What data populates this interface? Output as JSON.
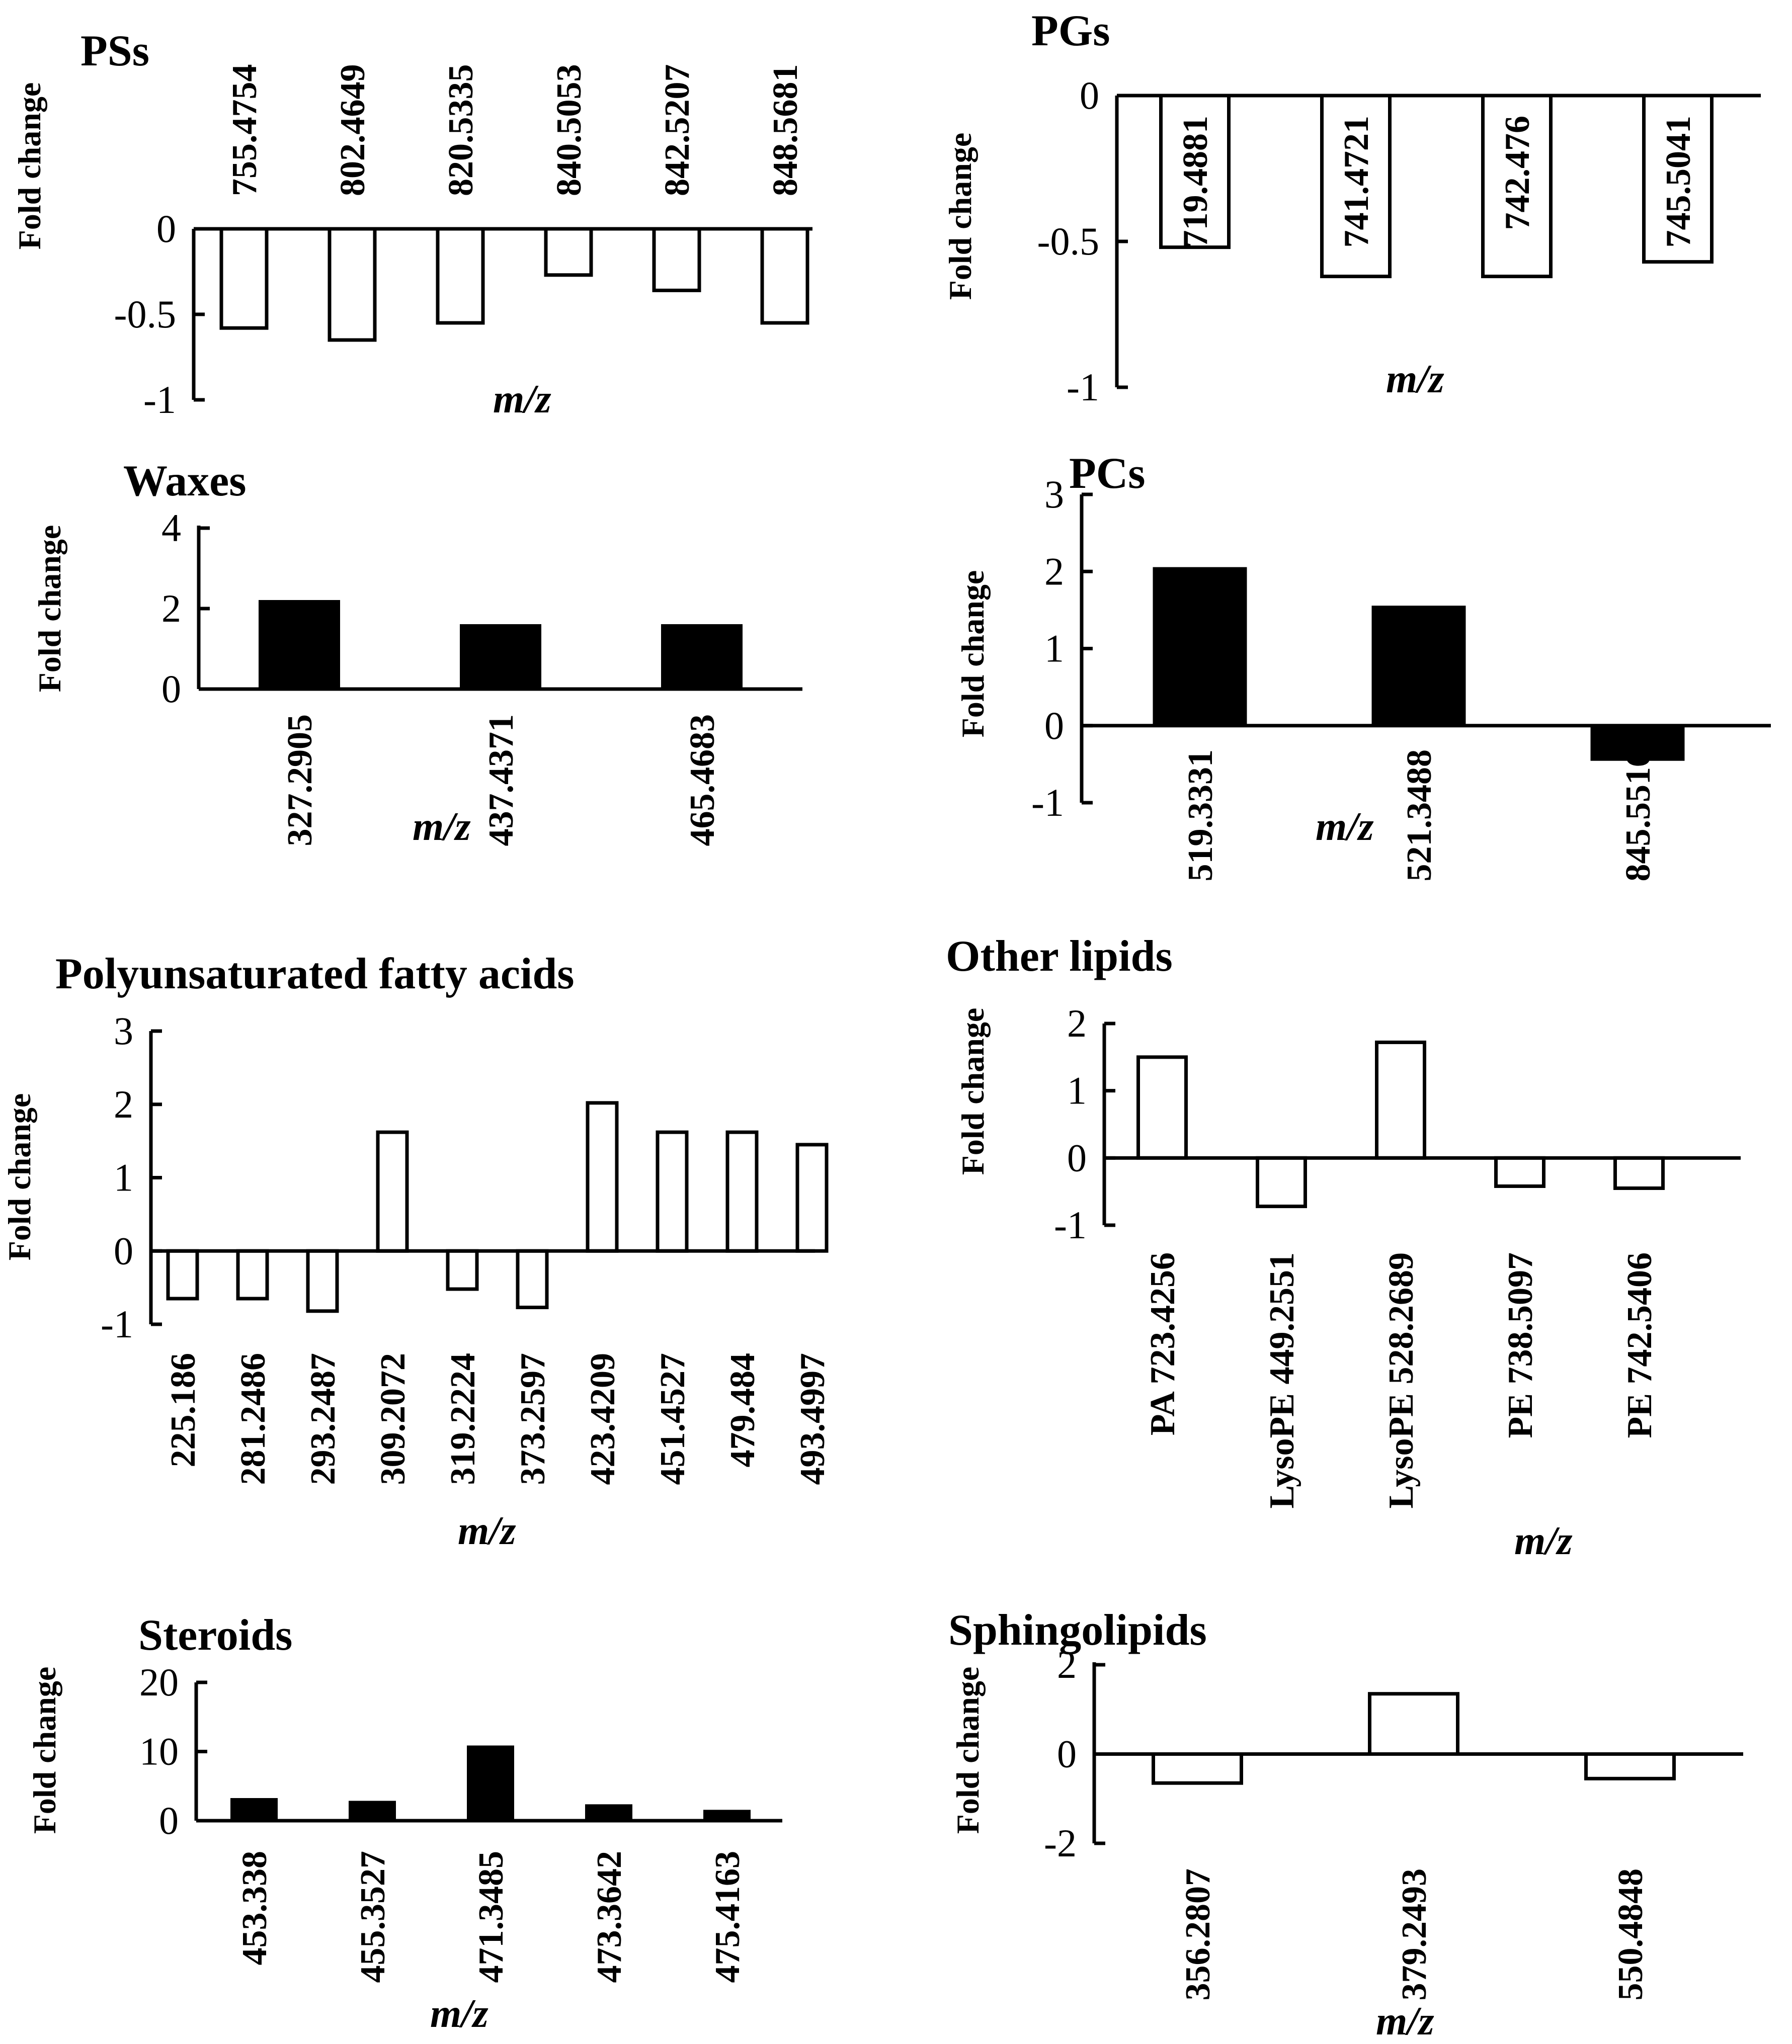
{
  "chart_data": [
    {
      "id": "pss",
      "type": "bar",
      "title": "PSs",
      "ylabel": "Fold change",
      "xlabel": "m/z",
      "ylim": [
        -1,
        0
      ],
      "yticks": [
        "0",
        "-0.5",
        "-1"
      ],
      "ytick_values": [
        0,
        -0.5,
        -1
      ],
      "fill": "open",
      "categories": [
        "755.4754",
        "802.4649",
        "820.5335",
        "840.5053",
        "842.5207",
        "848.5681"
      ],
      "values": [
        -0.58,
        -0.65,
        -0.55,
        -0.27,
        -0.36,
        -0.55
      ]
    },
    {
      "id": "pgs",
      "type": "bar",
      "title": "PGs",
      "ylabel": "Fold change",
      "xlabel": "m/z",
      "ylim": [
        -1,
        0
      ],
      "yticks": [
        "0",
        "-0.5",
        "-1"
      ],
      "ytick_values": [
        0,
        -0.5,
        -1
      ],
      "fill": "open",
      "categories": [
        "719.4881",
        "741.4721",
        "742.476",
        "745.5041"
      ],
      "values": [
        -0.52,
        -0.62,
        -0.62,
        -0.57
      ]
    },
    {
      "id": "waxes",
      "type": "bar",
      "title": "Waxes",
      "ylabel": "Fold change",
      "xlabel": "m/z",
      "ylim": [
        0,
        4
      ],
      "yticks": [
        "4",
        "2",
        "0"
      ],
      "ytick_values": [
        4,
        2,
        0
      ],
      "fill": "solid",
      "categories": [
        "327.2905",
        "437.4371",
        "465.4683"
      ],
      "values": [
        2.2,
        1.6,
        1.6
      ]
    },
    {
      "id": "pcs",
      "type": "bar",
      "title": "PCs",
      "ylabel": "Fold change",
      "xlabel": "m/z",
      "ylim": [
        -1,
        3
      ],
      "yticks": [
        "3",
        "2",
        "1",
        "0",
        "-1"
      ],
      "ytick_values": [
        3,
        2,
        1,
        0,
        -1
      ],
      "fill": "solid",
      "categories": [
        "519.3331",
        "521.3488",
        "845.5516"
      ],
      "values": [
        2.05,
        1.55,
        -0.45
      ]
    },
    {
      "id": "pufa",
      "type": "bar",
      "title": "Polyunsaturated fatty acids",
      "ylabel": "Fold change",
      "xlabel": "m/z",
      "ylim": [
        -1,
        3
      ],
      "yticks": [
        "3",
        "2",
        "1",
        "0",
        "-1"
      ],
      "ytick_values": [
        3,
        2,
        1,
        0,
        -1
      ],
      "fill": "open",
      "categories": [
        "225.186",
        "281.2486",
        "293.2487",
        "309.2072",
        "319.2224",
        "373.2597",
        "423.4209",
        "451.4527",
        "479.484",
        "493.4997"
      ],
      "values": [
        -0.65,
        -0.65,
        -0.82,
        1.62,
        -0.52,
        -0.77,
        2.02,
        1.62,
        1.62,
        1.45
      ]
    },
    {
      "id": "other",
      "type": "bar",
      "title": "Other lipids",
      "ylabel": "Fold change",
      "xlabel": "m/z",
      "ylim": [
        -1,
        2
      ],
      "yticks": [
        "2",
        "1",
        "0",
        "-1"
      ],
      "ytick_values": [
        2,
        1,
        0,
        -1
      ],
      "fill": "open",
      "categories": [
        "PA 723.4256",
        "LysoPE 449.2551",
        "LysoPE 528.2689",
        "PE 738.5097",
        "PE 742.5406"
      ],
      "values": [
        1.5,
        -0.72,
        1.72,
        -0.42,
        -0.45
      ]
    },
    {
      "id": "steroids",
      "type": "bar",
      "title": "Steroids",
      "ylabel": "Fold change",
      "xlabel": "m/z",
      "ylim": [
        0,
        20
      ],
      "yticks": [
        "20",
        "10",
        "0"
      ],
      "ytick_values": [
        20,
        10,
        0
      ],
      "fill": "solid",
      "categories": [
        "453.338",
        "455.3527",
        "471.3485",
        "473.3642",
        "475.4163"
      ],
      "values": [
        3.2,
        2.8,
        10.8,
        2.3,
        1.5
      ]
    },
    {
      "id": "sphingo",
      "type": "bar",
      "title": "Sphingolipids",
      "ylabel": "Fold change",
      "xlabel": "m/z",
      "ylim": [
        -2,
        2
      ],
      "yticks": [
        "2",
        "0",
        "-2"
      ],
      "ytick_values": [
        2,
        0,
        -2
      ],
      "fill": "open",
      "categories": [
        "356.2807",
        "379.2493",
        "550.4848"
      ],
      "values": [
        -0.65,
        1.35,
        -0.55
      ]
    }
  ]
}
